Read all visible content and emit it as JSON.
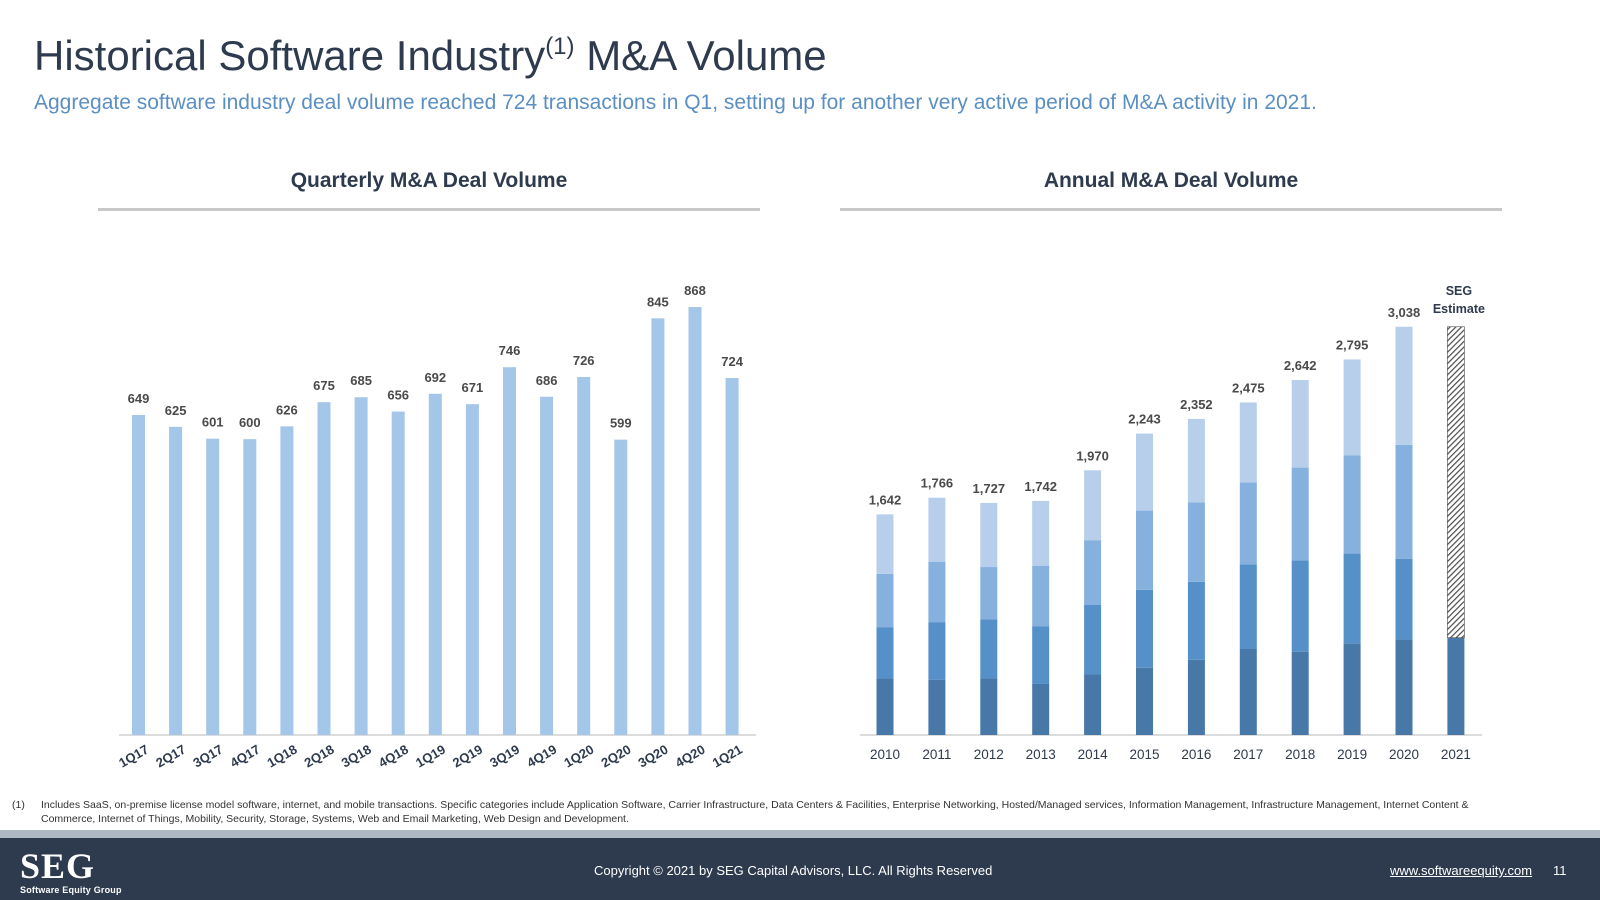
{
  "header": {
    "title_pre": "Historical Software Industry",
    "title_sup": "(1)",
    "title_post": " M&A Volume",
    "subtitle": "Aggregate software industry deal volume reached 724 transactions in Q1, setting up for another very active period of M&A activity in 2021."
  },
  "chart_data": [
    {
      "type": "bar",
      "title": "Quarterly M&A Deal Volume",
      "categories": [
        "1Q17",
        "2Q17",
        "3Q17",
        "4Q17",
        "1Q18",
        "2Q18",
        "3Q18",
        "4Q18",
        "1Q19",
        "2Q19",
        "3Q19",
        "4Q19",
        "1Q20",
        "2Q20",
        "3Q20",
        "4Q20",
        "1Q21"
      ],
      "values": [
        649,
        625,
        601,
        600,
        626,
        675,
        685,
        656,
        692,
        671,
        746,
        686,
        726,
        599,
        845,
        868,
        724
      ],
      "data_labels": [
        "649",
        "625",
        "601",
        "600",
        "626",
        "675",
        "685",
        "656",
        "692",
        "671",
        "746",
        "686",
        "726",
        "599",
        "845",
        "868",
        "724"
      ],
      "ylim": [
        0,
        900
      ],
      "grid": false,
      "colors": {
        "bar": "#a4c6e8"
      }
    },
    {
      "type": "bar",
      "stacked": true,
      "title": "Annual M&A Deal Volume",
      "categories": [
        "2010",
        "2011",
        "2012",
        "2013",
        "2014",
        "2015",
        "2016",
        "2017",
        "2018",
        "2019",
        "2020",
        "2021"
      ],
      "totals": [
        1642,
        1766,
        1727,
        1742,
        1970,
        2243,
        2352,
        2475,
        2642,
        2795,
        3038,
        3038
      ],
      "total_labels": [
        "1,642",
        "1,766",
        "1,727",
        "1,742",
        "1,970",
        "2,243",
        "2,352",
        "2,475",
        "2,642",
        "2,795",
        "3,038",
        ""
      ],
      "quarters": [
        [
          420,
          380,
          400,
          442
        ],
        [
          410,
          430,
          450,
          476
        ],
        [
          420,
          440,
          390,
          477
        ],
        [
          380,
          430,
          450,
          482
        ],
        [
          450,
          520,
          480,
          520
        ],
        [
          500,
          580,
          590,
          573
        ],
        [
          560,
          580,
          590,
          622
        ],
        [
          640,
          630,
          610,
          595
        ],
        [
          620,
          680,
          690,
          652
        ],
        [
          680,
          670,
          730,
          715
        ],
        [
          710,
          600,
          850,
          878
        ],
        [
          724
        ]
      ],
      "estimate_index": 11,
      "estimate_label_line1": "SEG",
      "estimate_label_line2": "Estimate",
      "ylim": [
        0,
        3200
      ],
      "grid": false,
      "colors": {
        "q1": "#4778a8",
        "q2": "#5590c8",
        "q3": "#86b1df",
        "q4": "#b8cfec",
        "estimate": "#4a4a4a"
      }
    }
  ],
  "footnote": {
    "marker": "(1)",
    "text": "Includes SaaS, on-premise license model software, internet, and mobile transactions. Specific categories include Application Software, Carrier Infrastructure, Data Centers & Facilities, Enterprise Networking, Hosted/Managed services, Information Management, Infrastructure Management, Internet Content & Commerce, Internet of Things, Mobility, Security, Storage, Systems, Web and Email Marketing, Web Design and Development."
  },
  "footer": {
    "logo_main": "SEG",
    "logo_sub": "Software Equity Group",
    "copyright": "Copyright © 2021 by SEG Capital Advisors, LLC. All Rights Reserved",
    "website": "www.softwareequity.com",
    "page_number": "11"
  }
}
